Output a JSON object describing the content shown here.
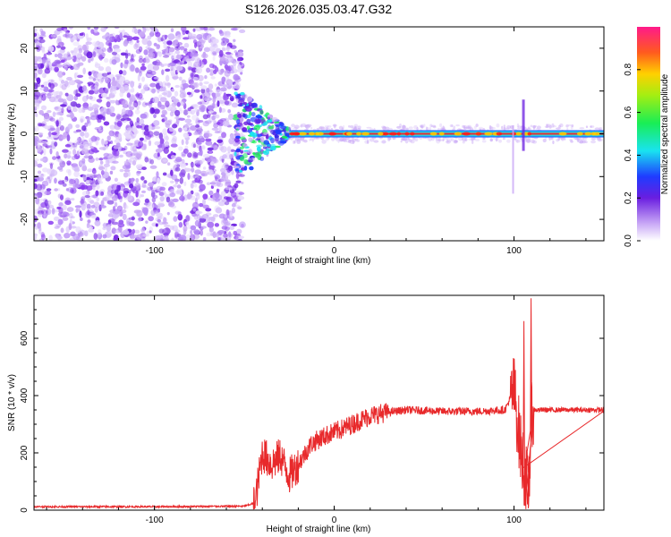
{
  "title": "S126.2026.035.03.47.G32",
  "chart_data": [
    {
      "type": "heatmap",
      "name": "spectrogram",
      "xlabel": "Height of straight line (km)",
      "ylabel": "Frequency (Hz)",
      "xlim": [
        -167,
        150
      ],
      "ylim": [
        -25,
        25
      ],
      "xticks": [
        -100,
        0,
        100
      ],
      "yticks": [
        -20,
        -10,
        0,
        10,
        20
      ],
      "colorbar": {
        "label": "Normalized spectral amplitude",
        "ticks": [
          0.0,
          0.2,
          0.4,
          0.6,
          0.8
        ],
        "range": [
          0,
          1
        ]
      },
      "description_regions": [
        {
          "x_range": [
            -167,
            -55
          ],
          "kind": "noise"
        },
        {
          "x_range": [
            -55,
            -25
          ],
          "kind": "transition"
        },
        {
          "x_range": [
            -25,
            150
          ],
          "kind": "carrier",
          "frequency": 0
        }
      ]
    },
    {
      "type": "line",
      "name": "snr",
      "xlabel": "Height of straight line (km)",
      "ylabel": "SNR (10 * v/v)",
      "xlim": [
        -167,
        150
      ],
      "ylim": [
        0,
        750
      ],
      "xticks": [
        -100,
        0,
        100
      ],
      "yticks": [
        0,
        200,
        400,
        600
      ],
      "color": "#e8292b",
      "profile": [
        {
          "x": -167,
          "y": 12
        },
        {
          "x": -100,
          "y": 12
        },
        {
          "x": -50,
          "y": 14
        },
        {
          "x": -44,
          "y": 25
        },
        {
          "x": -40,
          "y": 200
        },
        {
          "x": -35,
          "y": 160
        },
        {
          "x": -30,
          "y": 190
        },
        {
          "x": -25,
          "y": 120
        },
        {
          "x": -20,
          "y": 160
        },
        {
          "x": -13,
          "y": 230
        },
        {
          "x": -8,
          "y": 250
        },
        {
          "x": -3,
          "y": 265
        },
        {
          "x": 3,
          "y": 280
        },
        {
          "x": 10,
          "y": 300
        },
        {
          "x": 20,
          "y": 330
        },
        {
          "x": 28,
          "y": 340
        },
        {
          "x": 40,
          "y": 350
        },
        {
          "x": 60,
          "y": 345
        },
        {
          "x": 80,
          "y": 345
        },
        {
          "x": 95,
          "y": 350
        },
        {
          "x": 100,
          "y": 420
        },
        {
          "x": 104,
          "y": 200
        },
        {
          "x": 108,
          "y": 60
        },
        {
          "x": 110,
          "y": 350
        },
        {
          "x": 120,
          "y": 350
        },
        {
          "x": 150,
          "y": 350
        }
      ],
      "spikes": [
        {
          "x": 105.5,
          "y": 660
        },
        {
          "x": 109.5,
          "y": 740
        },
        {
          "x": 107.5,
          "y": 20
        }
      ]
    }
  ]
}
